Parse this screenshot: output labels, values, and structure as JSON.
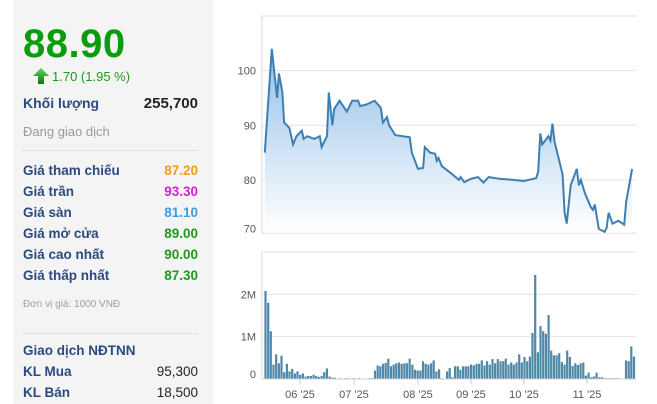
{
  "quote": {
    "price": "88.90",
    "change": "1.70 (1.95 %)",
    "change_icon": "arrow-up-icon",
    "volume_label": "Khối lượng",
    "volume": "255,700",
    "status": "Đang giao dịch",
    "rows": [
      {
        "label": "Giá tham chiếu",
        "value": "87.20",
        "color": "#f39c1e"
      },
      {
        "label": "Giá trần",
        "value": "93.30",
        "color": "#d41fd4"
      },
      {
        "label": "Giá sàn",
        "value": "81.10",
        "color": "#3a9ee4"
      },
      {
        "label": "Giá mở cửa",
        "value": "89.00",
        "color": "#1e9a1e"
      },
      {
        "label": "Giá cao nhất",
        "value": "90.00",
        "color": "#1e9a1e"
      },
      {
        "label": "Giá thấp nhất",
        "value": "87.30",
        "color": "#1e9a1e"
      }
    ],
    "unit_note": "Đơn vị giá: 1000 VNĐ",
    "foreign": {
      "title": "Giao dịch NĐTNN",
      "buy_label": "KL Mua",
      "buy": "95,300",
      "sell_label": "KL Bán",
      "sell": "18,500"
    }
  },
  "chart_data": [
    {
      "type": "area",
      "ylim": [
        70,
        110
      ],
      "yticks": [
        70,
        80,
        90,
        100
      ],
      "grid": true,
      "line_color": "#3d7fb0",
      "points": [
        [
          "2025-05-12",
          85
        ],
        [
          "2025-05-16",
          104
        ],
        [
          "2025-05-19",
          95
        ],
        [
          "2025-05-20",
          99.5
        ],
        [
          "2025-05-22",
          96
        ],
        [
          "2025-05-23",
          90.5
        ],
        [
          "2025-05-26",
          89.5
        ],
        [
          "2025-05-28",
          86.5
        ],
        [
          "2025-05-30",
          88
        ],
        [
          "2025-06-02",
          89
        ],
        [
          "2025-06-03",
          87.5
        ],
        [
          "2025-06-05",
          88
        ],
        [
          "2025-06-09",
          87.5
        ],
        [
          "2025-06-12",
          88
        ],
        [
          "2025-06-13",
          86
        ],
        [
          "2025-06-16",
          88
        ],
        [
          "2025-06-17",
          96
        ],
        [
          "2025-06-19",
          90
        ],
        [
          "2025-06-20",
          93
        ],
        [
          "2025-06-23",
          94.5
        ],
        [
          "2025-06-27",
          92.5
        ],
        [
          "2025-06-30",
          94.5
        ],
        [
          "2025-07-03",
          94.5
        ],
        [
          "2025-07-04",
          93.5
        ],
        [
          "2025-07-07",
          93.8
        ],
        [
          "2025-07-11",
          94.5
        ],
        [
          "2025-07-14",
          93.2
        ],
        [
          "2025-07-15",
          90.5
        ],
        [
          "2025-07-17",
          91.5
        ],
        [
          "2025-07-18",
          90
        ],
        [
          "2025-07-21",
          88.2
        ],
        [
          "2025-07-28",
          87.8
        ],
        [
          "2025-07-29",
          85
        ],
        [
          "2025-08-01",
          82
        ],
        [
          "2025-08-04",
          82.2
        ],
        [
          "2025-08-05",
          86
        ],
        [
          "2025-08-08",
          85
        ],
        [
          "2025-08-11",
          84.8
        ],
        [
          "2025-08-12",
          83.5
        ],
        [
          "2025-08-13",
          84
        ],
        [
          "2025-08-15",
          82.5
        ],
        [
          "2025-08-20",
          81.3
        ],
        [
          "2025-08-25",
          80
        ],
        [
          "2025-08-26",
          80.5
        ],
        [
          "2025-08-28",
          79.6
        ],
        [
          "2025-09-01",
          80.2
        ],
        [
          "2025-09-05",
          80.5
        ],
        [
          "2025-09-08",
          79.5
        ],
        [
          "2025-09-11",
          80.5
        ],
        [
          "2025-09-17",
          80.2
        ],
        [
          "2025-09-25",
          80
        ],
        [
          "2025-10-01",
          79.8
        ],
        [
          "2025-10-07",
          80.3
        ],
        [
          "2025-10-08",
          81.5
        ],
        [
          "2025-10-09",
          88.5
        ],
        [
          "2025-10-10",
          86.5
        ],
        [
          "2025-10-13",
          88
        ],
        [
          "2025-10-14",
          87.2
        ],
        [
          "2025-10-15",
          90.3
        ],
        [
          "2025-10-16",
          87
        ],
        [
          "2025-10-20",
          81
        ],
        [
          "2025-10-21",
          74
        ],
        [
          "2025-10-22",
          72
        ],
        [
          "2025-10-24",
          79
        ],
        [
          "2025-10-27",
          82
        ],
        [
          "2025-10-28",
          79
        ],
        [
          "2025-10-29",
          80
        ],
        [
          "2025-10-31",
          77.5
        ],
        [
          "2025-11-03",
          75
        ],
        [
          "2025-11-04",
          74.5
        ],
        [
          "2025-11-05",
          75.5
        ],
        [
          "2025-11-07",
          71
        ],
        [
          "2025-11-10",
          70.5
        ],
        [
          "2025-11-11",
          71.2
        ],
        [
          "2025-11-12",
          74
        ],
        [
          "2025-11-14",
          72
        ],
        [
          "2025-11-17",
          72.5
        ],
        [
          "2025-11-20",
          71.8
        ],
        [
          "2025-11-21",
          76
        ],
        [
          "2025-11-24",
          82
        ]
      ]
    },
    {
      "type": "bar",
      "ylim": [
        0,
        3
      ],
      "yticks": [
        {
          "v": 0,
          "label": "0"
        },
        {
          "v": 1,
          "label": "1M"
        },
        {
          "v": 2,
          "label": "2M"
        }
      ],
      "bar_color": "#4f88aa",
      "xticks": [
        "06 '25",
        "07 '25",
        "08 '25",
        "09 '25",
        "10 '25",
        "11 '25"
      ],
      "values_M": [
        2.08,
        1.8,
        1.13,
        0.34,
        0.58,
        0.37,
        0.55,
        0.16,
        0.36,
        0.18,
        0.24,
        0.13,
        0.18,
        0.1,
        0.13,
        0.06,
        0.07,
        0.07,
        0.1,
        0.07,
        0.05,
        0.07,
        0.16,
        0.25,
        0.06,
        0.03,
        0.03,
        0.01,
        0.02,
        0.01,
        0.02,
        0.02,
        0.01,
        0.02,
        0.01,
        0.02,
        0.01,
        0.01,
        0.01,
        0.02,
        0.02,
        0.2,
        0.32,
        0.3,
        0.36,
        0.38,
        0.48,
        0.3,
        0.34,
        0.37,
        0.39,
        0.36,
        0.37,
        0.37,
        0.48,
        0.34,
        0.22,
        0.2,
        0.2,
        0.42,
        0.36,
        0.34,
        0.37,
        0.44,
        0.18,
        0.23,
        0.02,
        0.01,
        0.18,
        0.26,
        0.04,
        0.3,
        0.3,
        0.22,
        0.3,
        0.3,
        0.3,
        0.34,
        0.32,
        0.36,
        0.36,
        0.44,
        0.32,
        0.42,
        0.34,
        0.47,
        0.37,
        0.47,
        0.42,
        0.42,
        0.48,
        0.34,
        0.39,
        0.34,
        0.39,
        0.58,
        0.39,
        0.52,
        0.42,
        0.53,
        1.09,
        2.46,
        0.63,
        1.25,
        1.13,
        1.07,
        1.51,
        0.67,
        0.56,
        0.56,
        0.61,
        0.4,
        0.34,
        0.67,
        0.52,
        0.31,
        0.37,
        0.33,
        0.37,
        0.39,
        0.08,
        0.15,
        0.04,
        0.06,
        0.15,
        0.04,
        0.04,
        0.02,
        0.02,
        0.02,
        0.02,
        0.02,
        0.02,
        0,
        0,
        0.44,
        0.42,
        0.77,
        0.53
      ]
    }
  ]
}
